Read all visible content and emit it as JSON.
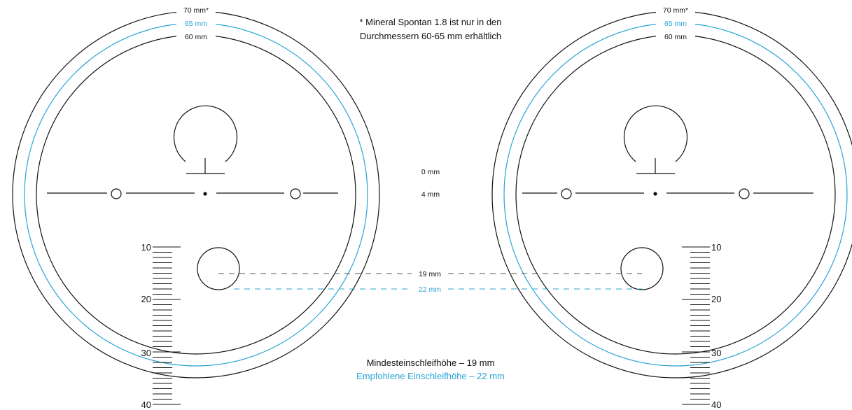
{
  "colors": {
    "black": "#111111",
    "blue": "#29a3d6"
  },
  "rings": {
    "outer_label": "70 mm*",
    "middle_label": "65 mm",
    "inner_label": "60 mm"
  },
  "footnote": {
    "line1": "* Mineral Spontan 1.8 ist nur in den",
    "line2": "Durchmessern 60-65 mm erhältlich"
  },
  "center_labels": {
    "zero": "0 mm",
    "four": "4 mm"
  },
  "heights": {
    "min_label": "19 mm",
    "rec_label": "22 mm"
  },
  "ruler_labels": [
    "10",
    "20",
    "30",
    "40"
  ],
  "legend": {
    "min": "Mindesteinschleifhöhe – 19 mm",
    "rec": "Empfohlene Einschleifhöhe – 22 mm"
  }
}
